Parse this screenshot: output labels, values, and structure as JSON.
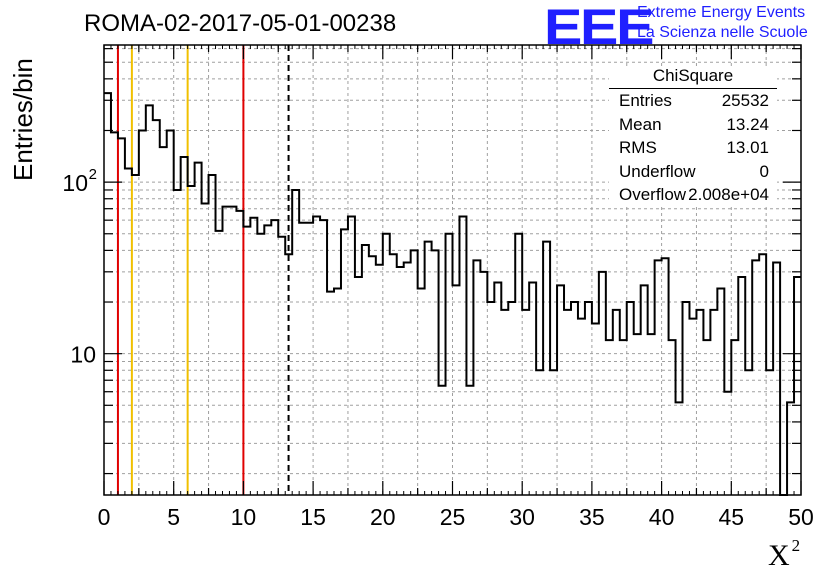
{
  "title": "ROMA-02-2017-05-01-00238",
  "logo": {
    "mark": "EEE",
    "line1": "Extreme Energy Events",
    "line2": "La Scienza nelle Scuole",
    "color": "#1f1fff"
  },
  "stats_box": {
    "title": "ChiSquare",
    "rows": [
      {
        "label": "Entries",
        "value": "25532"
      },
      {
        "label": "Mean",
        "value": "13.24"
      },
      {
        "label": "RMS",
        "value": "13.01"
      },
      {
        "label": "Underflow",
        "value": "0"
      },
      {
        "label": "Overflow",
        "value": "2.008e+04"
      }
    ]
  },
  "chart_data": {
    "type": "histogram",
    "title": "ROMA-02-2017-05-01-00238",
    "xlabel": "X",
    "xlabel_superscript": "2",
    "ylabel": "Entries/bin",
    "xlim": [
      0,
      50
    ],
    "ylim": [
      1.5,
      630
    ],
    "yscale": "log",
    "grid": true,
    "bin_width": 0.5,
    "x_ticks": [
      0,
      5,
      10,
      15,
      20,
      25,
      30,
      35,
      40,
      45,
      50
    ],
    "y_ticks": [
      {
        "value": 10,
        "label": "10"
      },
      {
        "value": 100,
        "label": "10",
        "exponent": "2"
      }
    ],
    "values": [
      330,
      195,
      180,
      120,
      110,
      200,
      280,
      230,
      160,
      200,
      90,
      140,
      95,
      130,
      75,
      110,
      52,
      72,
      72,
      68,
      55,
      62,
      50,
      56,
      60,
      48,
      38,
      90,
      58,
      58,
      63,
      60,
      23,
      24,
      53,
      63,
      28,
      43,
      37,
      33,
      50,
      38,
      32,
      34,
      40,
      24,
      45,
      40,
      6.5,
      50,
      25,
      63,
      6.5,
      35,
      30,
      20,
      26,
      18,
      20,
      50,
      18,
      26,
      8,
      45,
      8,
      25,
      18,
      20,
      16,
      20,
      15,
      30,
      12,
      18,
      12,
      20,
      13,
      25,
      13,
      35,
      36,
      12,
      5.2,
      20,
      16,
      18,
      12,
      18,
      24,
      6,
      12,
      28,
      8,
      35,
      38,
      8,
      34,
      1.4,
      5.2,
      28
    ],
    "series_color": "#000000",
    "vertical_lines": [
      {
        "x": 1,
        "color": "#e00000",
        "style": "solid"
      },
      {
        "x": 2,
        "color": "#f0c000",
        "style": "solid"
      },
      {
        "x": 6,
        "color": "#f0c000",
        "style": "solid"
      },
      {
        "x": 10,
        "color": "#e00000",
        "style": "solid"
      },
      {
        "x": 13.24,
        "color": "#000000",
        "style": "dashed"
      }
    ]
  }
}
